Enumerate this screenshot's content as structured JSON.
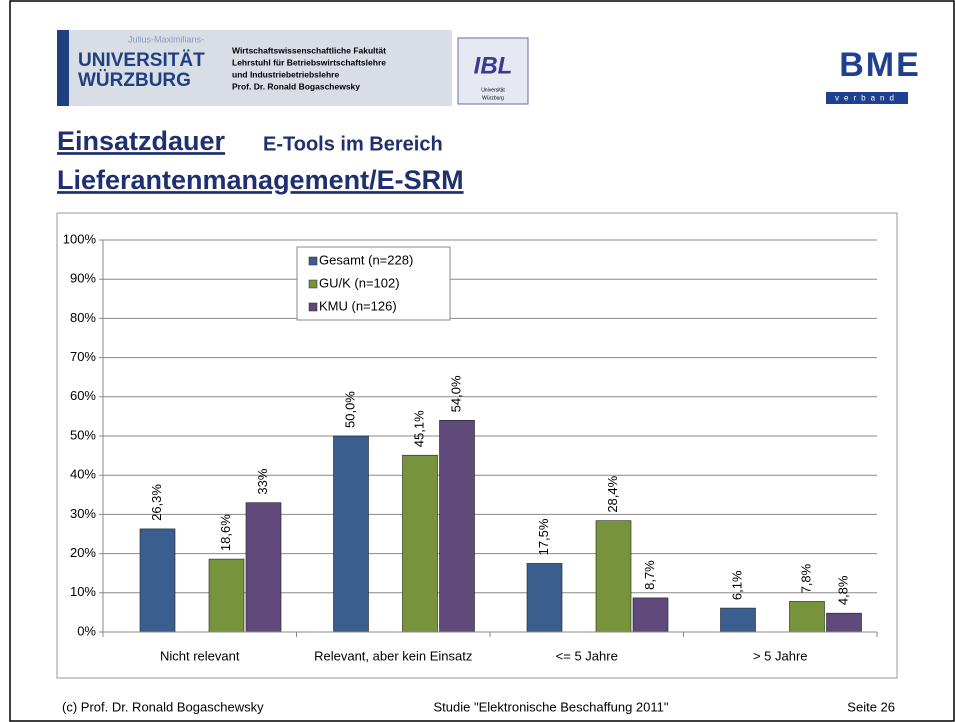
{
  "header": {
    "uni_small": "Julius-Maximilians-",
    "uni_line1": "UNIVERSITÄT",
    "uni_line2": "WÜRZBURG",
    "faculty": [
      "Wirtschaftswissenschaftliche Fakultät",
      "Lehrstuhl für Betriebswirtschaftslehre",
      "und Industriebetriebslehre",
      "Prof. Dr. Ronald Bogaschewsky"
    ],
    "ibl": "IBL",
    "ibl_sub": [
      "Universität",
      "Würzburg"
    ],
    "bme": "BME",
    "bme_sub": "verband"
  },
  "slide_title": {
    "part1": "Einsatzdauer",
    "part2": "E-Tools im Bereich",
    "part3": "Lieferantenmanagement/E-SRM"
  },
  "chart_data": {
    "type": "bar",
    "categories": [
      "Nicht relevant",
      "Relevant, aber kein Einsatz",
      "<= 5 Jahre",
      "> 5 Jahre"
    ],
    "series": [
      {
        "name": "Gesamt (n=228)",
        "color": "#3a5f8f",
        "values": [
          26.3,
          50.0,
          17.5,
          6.1
        ],
        "value_labels": [
          "26,3%",
          "50,0%",
          "17,5%",
          "6,1%"
        ]
      },
      {
        "name": "GU/K (n=102)",
        "color": "#77933c",
        "values": [
          18.6,
          45.1,
          28.4,
          7.8
        ],
        "value_labels": [
          "18,6%",
          "45,1%",
          "28,4%",
          "7,8%"
        ]
      },
      {
        "name": "KMU (n=126)",
        "color": "#604a7b",
        "values": [
          33,
          54.0,
          8.7,
          4.8
        ],
        "value_labels": [
          "33%",
          "54,0%",
          "8,7%",
          "4,8%"
        ]
      }
    ],
    "ylim": [
      0,
      100
    ],
    "yticks": [
      {
        "value": 0,
        "label": "0%"
      },
      {
        "value": 10,
        "label": "10%"
      },
      {
        "value": 20,
        "label": "20%"
      },
      {
        "value": 30,
        "label": "30%"
      },
      {
        "value": 40,
        "label": "40%"
      },
      {
        "value": 50,
        "label": "50%"
      },
      {
        "value": 60,
        "label": "60%"
      },
      {
        "value": 70,
        "label": "70%"
      },
      {
        "value": 80,
        "label": "80%"
      },
      {
        "value": 90,
        "label": "90%"
      },
      {
        "value": 100,
        "label": "100%"
      }
    ],
    "grid": true
  },
  "footer": {
    "left": "(c) Prof. Dr. Ronald Bogaschewsky",
    "center": "Studie \"Elektronische Beschaffung 2011\"",
    "right": "Seite 26"
  }
}
